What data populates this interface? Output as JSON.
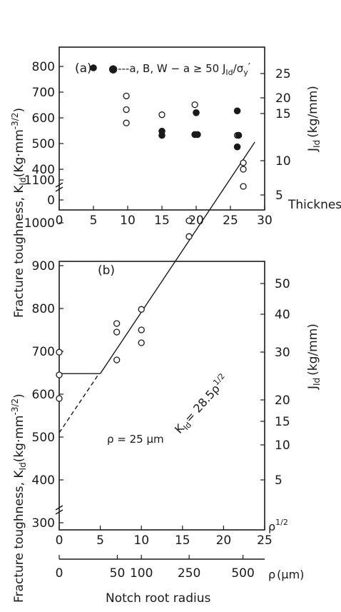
{
  "chart_data": [
    {
      "type": "scatter",
      "panel_label": "(a)",
      "legend_text": "●---a, B, W − a ≥ 50 J",
      "legend_sub": "Id",
      "legend_tail": "/σ",
      "legend_sub2": "y",
      "legend_tail2": "′",
      "xlabel": "Thickness(mm)",
      "ylabel": "Fracture toughness, K",
      "ylabel_sub": "Id",
      "ylabel_unit": "(Kg·mm",
      "ylabel_unit_sup": "-3/2",
      "ylabel_unit_close": ")",
      "ylabel_right": "J",
      "ylabel_right_sub": "Id",
      "ylabel_right_unit": "(kg/mm)",
      "xlim": [
        0,
        30
      ],
      "x_ticks": [
        "0",
        "5",
        "10",
        "15",
        "20",
        "25",
        "30"
      ],
      "y_ticks": [
        "0",
        "400",
        "500",
        "600",
        "700",
        "800"
      ],
      "y_ticks_right": [
        "5",
        "10",
        "15",
        "20",
        "25"
      ],
      "series": [
        {
          "marker": "open",
          "points": [
            [
              9.8,
              685
            ],
            [
              9.8,
              632
            ],
            [
              9.8,
              580
            ],
            [
              15,
              612
            ],
            [
              19.8,
              651
            ],
            [
              26,
              532
            ]
          ]
        },
        {
          "marker": "filled",
          "points": [
            [
              15,
              548
            ],
            [
              15,
              532
            ],
            [
              20,
              620
            ],
            [
              19.8,
              535
            ],
            [
              20.2,
              535
            ],
            [
              26,
              627
            ],
            [
              26.2,
              532
            ],
            [
              26,
              487
            ]
          ]
        }
      ]
    },
    {
      "type": "scatter",
      "panel_label": "(b)",
      "xlabel": "Notch root radius",
      "ylabel": "Fracture toughness, K",
      "ylabel_sub": "Id",
      "ylabel_unit": "(kg·mm",
      "ylabel_unit_sup": "-3/2",
      "ylabel_unit_close": ")",
      "ylabel_right": "J",
      "ylabel_right_sub": "Id",
      "ylabel_right_unit": "(kg/mm)",
      "fit_label": "K",
      "fit_label_sub": "Id",
      "fit_label_tail": "= 28.5ρ",
      "fit_label_sup": "1/2",
      "rho_label": "ρ = 25 μm",
      "x_axis_var": "ρ",
      "x_axis_var_sup": "1/2",
      "x2_axis_var": "ρ",
      "x2_axis_unit": "(μm)",
      "xlim": [
        0,
        25
      ],
      "x_ticks": [
        "0",
        "5",
        "10",
        "15",
        "20",
        "25"
      ],
      "x2_ticks": [
        "0",
        "50",
        "100",
        "250",
        "500"
      ],
      "x2_tick_values": [
        0,
        50,
        100,
        250,
        500
      ],
      "y_ticks": [
        "300",
        "400",
        "500",
        "600",
        "700",
        "800",
        "900",
        "1000",
        "1100"
      ],
      "y_ticks_right": [
        "5",
        "10",
        "15",
        "20",
        "30",
        "40",
        "50"
      ],
      "fit": {
        "slope": 28.5,
        "intercept": 510,
        "plateau": 648,
        "plateau_end": 5
      },
      "series": [
        {
          "marker": "open",
          "points": [
            [
              0,
              698
            ],
            [
              0,
              645
            ],
            [
              0,
              590
            ],
            [
              7,
              765
            ],
            [
              7,
              745
            ],
            [
              7,
              680
            ],
            [
              10,
              798
            ],
            [
              10,
              750
            ],
            [
              10,
              720
            ],
            [
              15.8,
              1005
            ],
            [
              15.8,
              968
            ],
            [
              22.4,
              1140
            ],
            [
              22.4,
              1125
            ],
            [
              22.4,
              1085
            ]
          ]
        }
      ]
    }
  ]
}
